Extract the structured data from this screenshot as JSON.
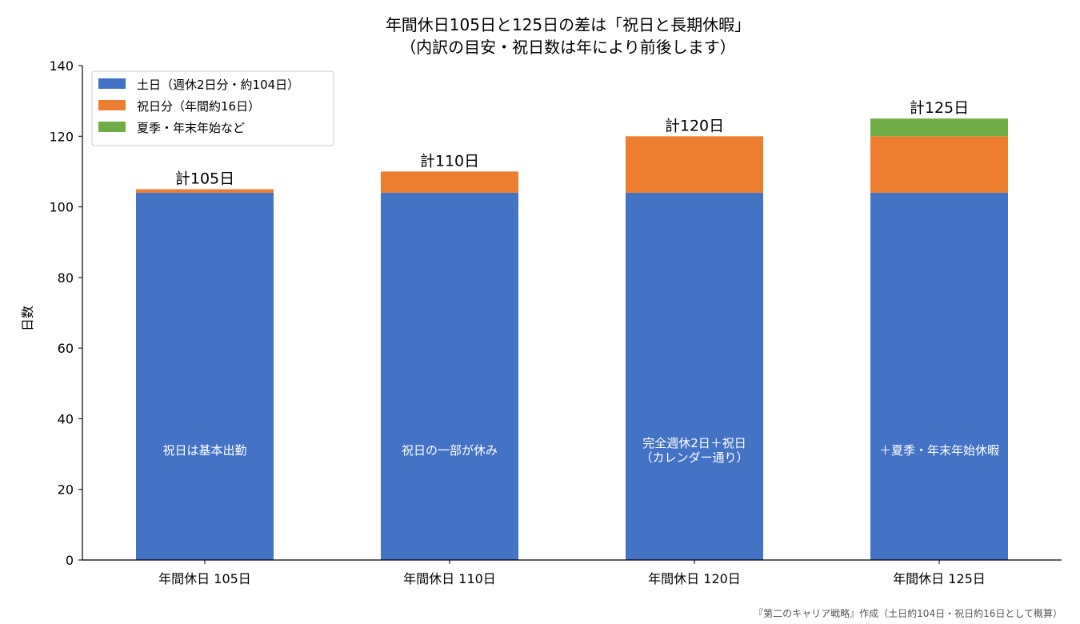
{
  "chart_data": {
    "type": "bar",
    "stacked": true,
    "title_lines": [
      "年間休日105日と125日の差は「祝日と長期休暇」",
      "（内訳の目安・祝日数は年により前後します）"
    ],
    "xlabel": "",
    "ylabel": "日数",
    "ylim": [
      0,
      140
    ],
    "yticks": [
      0,
      20,
      40,
      60,
      80,
      100,
      120,
      140
    ],
    "categories": [
      "年間休日 105日",
      "年間休日 110日",
      "年間休日 120日",
      "年間休日 125日"
    ],
    "series": [
      {
        "name": "土日（週休2日分・約104日）",
        "color": "#4472C4",
        "values": [
          104,
          104,
          104,
          104
        ]
      },
      {
        "name": "祝日分（年間約16日）",
        "color": "#ED7D31",
        "values": [
          1,
          6,
          16,
          16
        ]
      },
      {
        "name": "夏季・年末年始など",
        "color": "#70AD47",
        "values": [
          0,
          0,
          0,
          5
        ]
      }
    ],
    "total_labels": [
      "計105日",
      "計110日",
      "計120日",
      "計125日"
    ],
    "inner_labels": [
      [
        "祝日は基本出勤"
      ],
      [
        "祝日の一部が休み"
      ],
      [
        "完全週休2日＋祝日",
        "（カレンダー通り）"
      ],
      [
        "＋夏季・年末年始休暇"
      ]
    ],
    "inner_label_value": 31,
    "legend_position": "top-left",
    "grid": false
  },
  "source_note": "『第二のキャリア戦略』作成（土日約104日・祝日約16日として概算）"
}
